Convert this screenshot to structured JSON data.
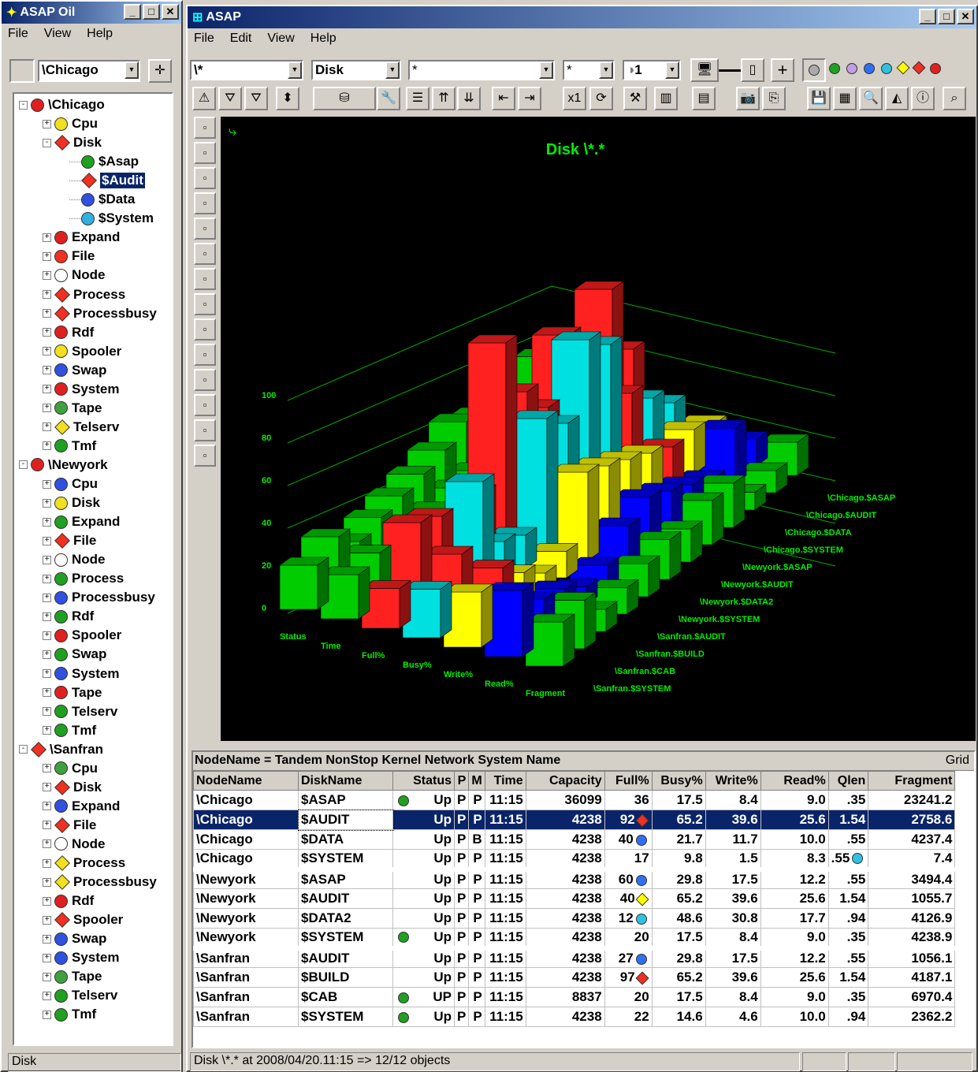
{
  "left_window": {
    "title": "ASAP Oil",
    "menu": [
      "File",
      "View",
      "Help"
    ],
    "node_combo": "\\Chicago",
    "status": "Disk"
  },
  "tree": [
    {
      "lvl": 0,
      "exp": "-",
      "label": "\\Chicago",
      "icon": "red-x-circle-icon",
      "color": "#e02020"
    },
    {
      "lvl": 1,
      "exp": "+",
      "label": "Cpu",
      "icon": "yellow-warning-icon",
      "color": "#f0e020"
    },
    {
      "lvl": 1,
      "exp": "-",
      "label": "Disk",
      "icon": "red-diamond-icon",
      "color": "#f03020",
      "shape": "dia"
    },
    {
      "lvl": 2,
      "exp": "",
      "label": "$Asap",
      "icon": "green-circle-icon",
      "color": "#20a020"
    },
    {
      "lvl": 2,
      "exp": "",
      "label": "$Audit",
      "icon": "red-diamond-icon",
      "color": "#f03020",
      "shape": "dia",
      "sel": true
    },
    {
      "lvl": 2,
      "exp": "",
      "label": "$Data",
      "icon": "blue-circle-icon",
      "color": "#3050e0"
    },
    {
      "lvl": 2,
      "exp": "",
      "label": "$System",
      "icon": "cyan-circle-icon",
      "color": "#30b0e0"
    },
    {
      "lvl": 1,
      "exp": "+",
      "label": "Expand",
      "icon": "red-x-circle-icon",
      "color": "#e02020"
    },
    {
      "lvl": 1,
      "exp": "+",
      "label": "File",
      "icon": "red-diamond-icon",
      "color": "#f03020"
    },
    {
      "lvl": 1,
      "exp": "+",
      "label": "Node",
      "icon": "node-icon",
      "color": "#ffffff"
    },
    {
      "lvl": 1,
      "exp": "+",
      "label": "Process",
      "icon": "red-diamond-icon",
      "color": "#f03020",
      "shape": "dia"
    },
    {
      "lvl": 1,
      "exp": "+",
      "label": "Processbusy",
      "icon": "red-diamond-icon",
      "color": "#f03020",
      "shape": "dia"
    },
    {
      "lvl": 1,
      "exp": "+",
      "label": "Rdf",
      "icon": "red-x-circle-icon",
      "color": "#e02020"
    },
    {
      "lvl": 1,
      "exp": "+",
      "label": "Spooler",
      "icon": "yellow-warning-icon",
      "color": "#f0e020"
    },
    {
      "lvl": 1,
      "exp": "+",
      "label": "Swap",
      "icon": "blue-circle-icon",
      "color": "#3050e0"
    },
    {
      "lvl": 1,
      "exp": "+",
      "label": "System",
      "icon": "red-x-circle-icon",
      "color": "#e02020"
    },
    {
      "lvl": 1,
      "exp": "+",
      "label": "Tape",
      "icon": "green-tape-icon",
      "color": "#40a040"
    },
    {
      "lvl": 1,
      "exp": "+",
      "label": "Telserv",
      "icon": "yellow-diamond-icon",
      "color": "#f0e020",
      "shape": "dia"
    },
    {
      "lvl": 1,
      "exp": "+",
      "label": "Tmf",
      "icon": "green-circle-icon",
      "color": "#20a020"
    },
    {
      "lvl": 0,
      "exp": "-",
      "label": "\\Newyork",
      "icon": "red-x-circle-icon",
      "color": "#e02020"
    },
    {
      "lvl": 1,
      "exp": "+",
      "label": "Cpu",
      "icon": "blue-cpu-icon",
      "color": "#3050e0"
    },
    {
      "lvl": 1,
      "exp": "+",
      "label": "Disk",
      "icon": "yellow-warning-icon",
      "color": "#f0e020"
    },
    {
      "lvl": 1,
      "exp": "+",
      "label": "Expand",
      "icon": "green-circle-icon",
      "color": "#20a020"
    },
    {
      "lvl": 1,
      "exp": "+",
      "label": "File",
      "icon": "red-diamond-icon",
      "color": "#f03020",
      "shape": "dia"
    },
    {
      "lvl": 1,
      "exp": "+",
      "label": "Node",
      "icon": "node-icon",
      "color": "#ffffff"
    },
    {
      "lvl": 1,
      "exp": "+",
      "label": "Process",
      "icon": "green-circle-icon",
      "color": "#20a020"
    },
    {
      "lvl": 1,
      "exp": "+",
      "label": "Processbusy",
      "icon": "blue-circle-icon",
      "color": "#3050e0"
    },
    {
      "lvl": 1,
      "exp": "+",
      "label": "Rdf",
      "icon": "green-circle-icon",
      "color": "#20a020"
    },
    {
      "lvl": 1,
      "exp": "+",
      "label": "Spooler",
      "icon": "red-x-circle-icon",
      "color": "#e02020"
    },
    {
      "lvl": 1,
      "exp": "+",
      "label": "Swap",
      "icon": "green-circle-icon",
      "color": "#20a020"
    },
    {
      "lvl": 1,
      "exp": "+",
      "label": "System",
      "icon": "blue-cpu-icon",
      "color": "#3050e0"
    },
    {
      "lvl": 1,
      "exp": "+",
      "label": "Tape",
      "icon": "red-x-circle-icon",
      "color": "#e02020"
    },
    {
      "lvl": 1,
      "exp": "+",
      "label": "Telserv",
      "icon": "green-circle-icon",
      "color": "#20a020"
    },
    {
      "lvl": 1,
      "exp": "+",
      "label": "Tmf",
      "icon": "green-circle-icon",
      "color": "#20a020"
    },
    {
      "lvl": 0,
      "exp": "-",
      "label": "\\Sanfran",
      "icon": "red-diamond-icon",
      "color": "#f03020",
      "shape": "dia"
    },
    {
      "lvl": 1,
      "exp": "+",
      "label": "Cpu",
      "icon": "green-cpu-icon",
      "color": "#40a040"
    },
    {
      "lvl": 1,
      "exp": "+",
      "label": "Disk",
      "icon": "red-diamond-icon",
      "color": "#f03020",
      "shape": "dia"
    },
    {
      "lvl": 1,
      "exp": "+",
      "label": "Expand",
      "icon": "blue-circle-icon",
      "color": "#3050e0"
    },
    {
      "lvl": 1,
      "exp": "+",
      "label": "File",
      "icon": "red-diamond-icon",
      "color": "#f03020",
      "shape": "dia"
    },
    {
      "lvl": 1,
      "exp": "+",
      "label": "Node",
      "icon": "node-icon",
      "color": "#ffffff"
    },
    {
      "lvl": 1,
      "exp": "+",
      "label": "Process",
      "icon": "yellow-diamond-icon",
      "color": "#f0e020",
      "shape": "dia"
    },
    {
      "lvl": 1,
      "exp": "+",
      "label": "Processbusy",
      "icon": "yellow-diamond-icon",
      "color": "#f0e020",
      "shape": "dia"
    },
    {
      "lvl": 1,
      "exp": "+",
      "label": "Rdf",
      "icon": "red-x-circle-icon",
      "color": "#e02020"
    },
    {
      "lvl": 1,
      "exp": "+",
      "label": "Spooler",
      "icon": "red-diamond-icon",
      "color": "#f03020",
      "shape": "dia"
    },
    {
      "lvl": 1,
      "exp": "+",
      "label": "Swap",
      "icon": "blue-circle-icon",
      "color": "#3050e0"
    },
    {
      "lvl": 1,
      "exp": "+",
      "label": "System",
      "icon": "blue-cpu-icon",
      "color": "#3050e0"
    },
    {
      "lvl": 1,
      "exp": "+",
      "label": "Tape",
      "icon": "green-tape-icon",
      "color": "#40a040"
    },
    {
      "lvl": 1,
      "exp": "+",
      "label": "Telserv",
      "icon": "green-circle-icon",
      "color": "#20a020"
    },
    {
      "lvl": 1,
      "exp": "+",
      "label": "Tmf",
      "icon": "green-circle-icon",
      "color": "#20a020"
    }
  ],
  "main_window": {
    "title": "ASAP",
    "menu": [
      "File",
      "Edit",
      "View",
      "Help"
    ],
    "combos": {
      "node": "\\*",
      "entity": "Disk",
      "filter": "*",
      "sub": "*",
      "level": "1"
    },
    "status": "Disk \\*.* at 2008/04/20.11:15 => 12/12 objects"
  },
  "chart_data": {
    "type": "bar3d",
    "title": "Disk \\*.*",
    "y_ticks": [
      "0",
      "20",
      "40",
      "60",
      "80",
      "100"
    ],
    "x_categories": [
      "Status",
      "Time",
      "Full%",
      "Busy%",
      "Write%",
      "Read%",
      "Fragment"
    ],
    "z_categories": [
      "\\Chicago.$ASAP",
      "\\Chicago.$AUDIT",
      "\\Chicago.$DATA",
      "\\Chicago.$SYSTEM",
      "\\Newyork.$ASAP",
      "\\Newyork.$AUDIT",
      "\\Newyork.$DATA2",
      "\\Newyork.$SYSTEM",
      "\\Sanfran.$AUDIT",
      "\\Sanfran.$BUILD",
      "\\Sanfran.$CAB",
      "\\Sanfran.$SYSTEM"
    ],
    "colors": [
      "#00cc00",
      "#00cc00",
      "#ff2020",
      "#00e0e0",
      "#ffff00",
      "#0000ff",
      "#00cc00"
    ],
    "ylim": [
      0,
      100
    ]
  },
  "grid": {
    "title": "NodeName = Tandem NonStop Kernel Network System Name",
    "right_label": "Grid",
    "columns": [
      "NodeName",
      "DiskName",
      "Status",
      "P",
      "M",
      "Time",
      "Capacity",
      "Full%",
      "Busy%",
      "Write%",
      "Read%",
      "Qlen",
      "Fragment"
    ],
    "rows": [
      {
        "node": "\\Chicago",
        "disk": "$ASAP",
        "sicon": "green",
        "status": "Up",
        "p": "P",
        "m": "P",
        "time": "11:15",
        "cap": "36099",
        "full": "36",
        "ficon": "",
        "busy": "17.5",
        "write": "8.4",
        "read": "9.0",
        "qlen": ".35",
        "qicon": "",
        "frag": "23241.2"
      },
      {
        "node": "\\Chicago",
        "disk": "$AUDIT",
        "sicon": "",
        "status": "Up",
        "p": "P",
        "m": "P",
        "time": "11:15",
        "cap": "4238",
        "full": "92",
        "ficon": "red-dia",
        "busy": "65.2",
        "write": "39.6",
        "read": "25.6",
        "qlen": "1.54",
        "qicon": "",
        "frag": "2758.6",
        "sel": true
      },
      {
        "node": "\\Chicago",
        "disk": "$DATA",
        "sicon": "",
        "status": "Up",
        "p": "P",
        "m": "B",
        "time": "11:15",
        "cap": "4238",
        "full": "40",
        "ficon": "blue",
        "busy": "21.7",
        "write": "11.7",
        "read": "10.0",
        "qlen": ".55",
        "qicon": "",
        "frag": "4237.4"
      },
      {
        "node": "\\Chicago",
        "disk": "$SYSTEM",
        "sicon": "",
        "status": "Up",
        "p": "P",
        "m": "P",
        "time": "11:15",
        "cap": "4238",
        "full": "17",
        "ficon": "",
        "busy": "9.8",
        "write": "1.5",
        "read": "8.3",
        "qlen": ".55",
        "qicon": "cyan",
        "frag": "7.4"
      },
      {
        "node": "\\Newyork",
        "disk": "$ASAP",
        "sicon": "",
        "status": "Up",
        "p": "P",
        "m": "P",
        "time": "11:15",
        "cap": "4238",
        "full": "60",
        "ficon": "blue",
        "busy": "29.8",
        "write": "17.5",
        "read": "12.2",
        "qlen": ".55",
        "qicon": "",
        "frag": "3494.4",
        "gap": true
      },
      {
        "node": "\\Newyork",
        "disk": "$AUDIT",
        "sicon": "",
        "status": "Up",
        "p": "P",
        "m": "P",
        "time": "11:15",
        "cap": "4238",
        "full": "40",
        "ficon": "yellow-dia",
        "busy": "65.2",
        "write": "39.6",
        "read": "25.6",
        "qlen": "1.54",
        "qicon": "",
        "frag": "1055.7"
      },
      {
        "node": "\\Newyork",
        "disk": "$DATA2",
        "sicon": "",
        "status": "Up",
        "p": "P",
        "m": "P",
        "time": "11:15",
        "cap": "4238",
        "full": "12",
        "ficon": "cyan",
        "busy": "48.6",
        "write": "30.8",
        "read": "17.7",
        "qlen": ".94",
        "qicon": "",
        "frag": "4126.9"
      },
      {
        "node": "\\Newyork",
        "disk": "$SYSTEM",
        "sicon": "green",
        "status": "Up",
        "p": "P",
        "m": "P",
        "time": "11:15",
        "cap": "4238",
        "full": "20",
        "ficon": "",
        "busy": "17.5",
        "write": "8.4",
        "read": "9.0",
        "qlen": ".35",
        "qicon": "",
        "frag": "4238.9"
      },
      {
        "node": "\\Sanfran",
        "disk": "$AUDIT",
        "sicon": "",
        "status": "Up",
        "p": "P",
        "m": "P",
        "time": "11:15",
        "cap": "4238",
        "full": "27",
        "ficon": "blue",
        "busy": "29.8",
        "write": "17.5",
        "read": "12.2",
        "qlen": ".55",
        "qicon": "",
        "frag": "1056.1",
        "gap": true
      },
      {
        "node": "\\Sanfran",
        "disk": "$BUILD",
        "sicon": "",
        "status": "Up",
        "p": "P",
        "m": "P",
        "time": "11:15",
        "cap": "4238",
        "full": "97",
        "ficon": "red-dia",
        "busy": "65.2",
        "write": "39.6",
        "read": "25.6",
        "qlen": "1.54",
        "qicon": "",
        "frag": "4187.1"
      },
      {
        "node": "\\Sanfran",
        "disk": "$CAB",
        "sicon": "green",
        "status": "UP",
        "p": "P",
        "m": "P",
        "time": "11:15",
        "cap": "8837",
        "full": "20",
        "ficon": "",
        "busy": "17.5",
        "write": "8.4",
        "read": "9.0",
        "qlen": ".35",
        "qicon": "",
        "frag": "6970.4"
      },
      {
        "node": "\\Sanfran",
        "disk": "$SYSTEM",
        "sicon": "green",
        "status": "Up",
        "p": "P",
        "m": "P",
        "time": "11:15",
        "cap": "4238",
        "full": "22",
        "ficon": "",
        "busy": "14.6",
        "write": "4.6",
        "read": "10.0",
        "qlen": ".94",
        "qicon": "",
        "frag": "2362.2"
      }
    ]
  }
}
